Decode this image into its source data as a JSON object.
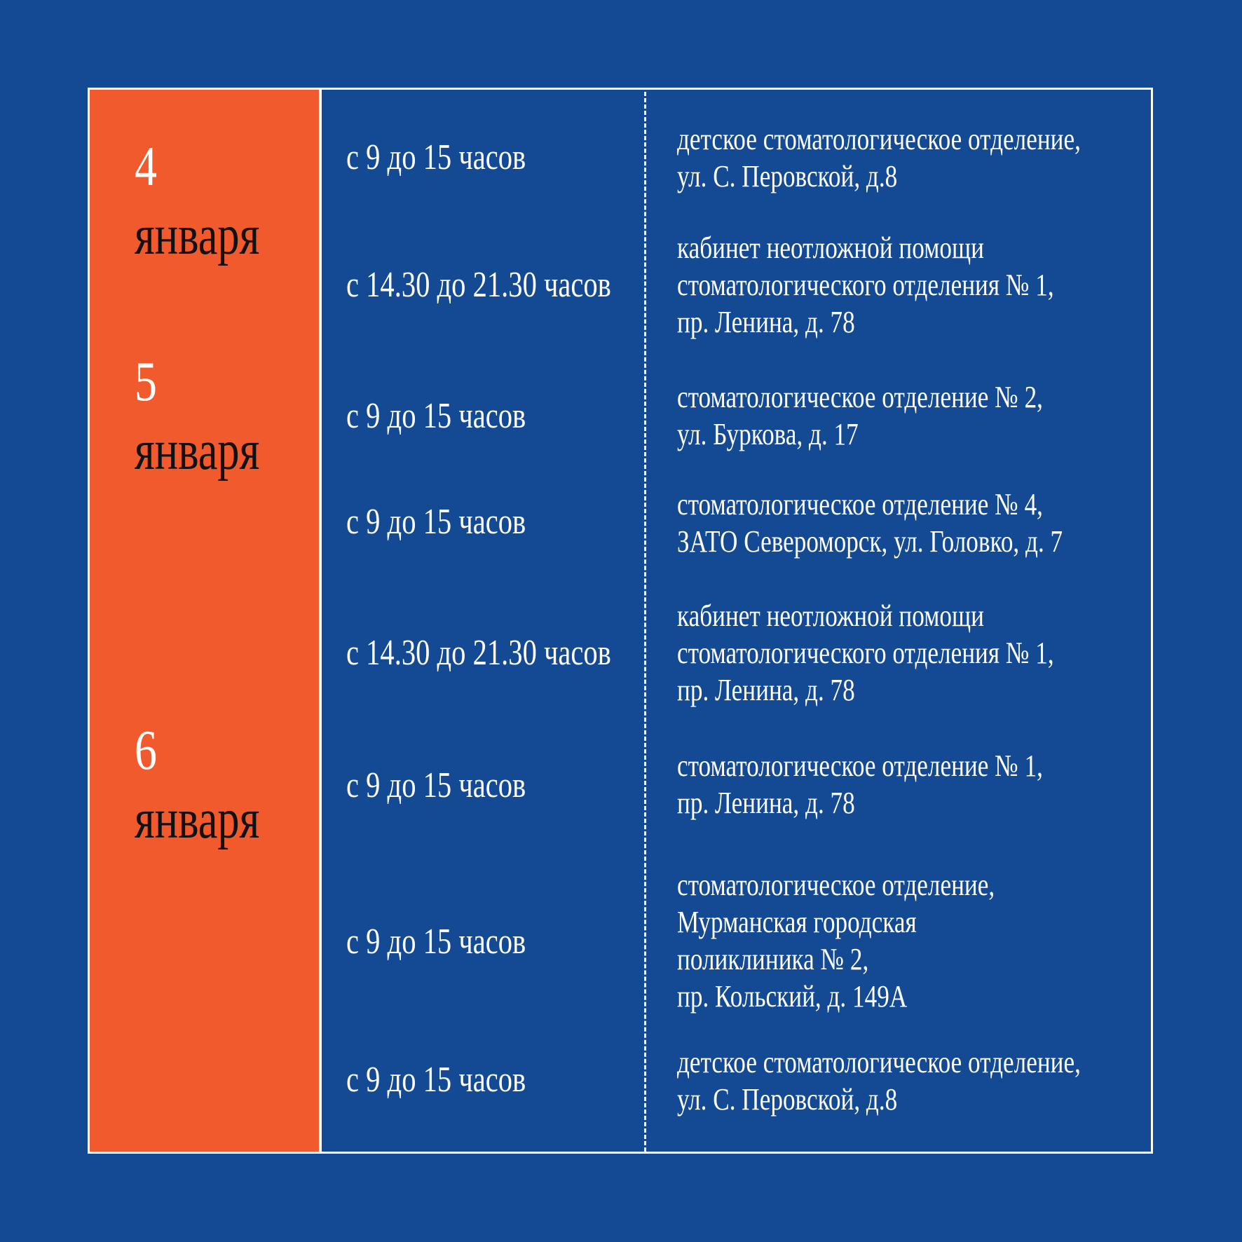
{
  "dates": [
    {
      "day": "4",
      "month": "января"
    },
    {
      "day": "5",
      "month": "января"
    },
    {
      "day": "6",
      "month": "января"
    }
  ],
  "rows": [
    {
      "time": "с 9 до 15 часов",
      "place": [
        "детское стоматологическое отделение,",
        "ул. С. Перовской, д.8"
      ]
    },
    {
      "time": "с 14.30 до 21.30 часов",
      "place": [
        "кабинет неотложной помощи",
        "стоматологического отделения № 1,",
        "пр. Ленина, д. 78"
      ]
    },
    {
      "time": "с 9 до 15 часов",
      "place": [
        "стоматологическое отделение № 2,",
        "ул. Буркова, д. 17"
      ]
    },
    {
      "time": "с 9 до 15 часов",
      "place": [
        "стоматологическое отделение № 4,",
        "ЗАТО Североморск, ул. Головко, д. 7"
      ]
    },
    {
      "time": "с 14.30 до 21.30 часов",
      "place": [
        "кабинет неотложной помощи",
        "стоматологического отделения № 1,",
        "пр. Ленина, д. 78"
      ]
    },
    {
      "time": "с 9 до 15 часов",
      "place": [
        "стоматологическое отделение № 1,",
        "пр. Ленина, д. 78"
      ]
    },
    {
      "time": "с 9 до 15 часов",
      "place": [
        "стоматологическое отделение,",
        "Мурманская городская",
        "поликлиника №  2,",
        "пр. Кольский, д. 149А"
      ]
    },
    {
      "time": "с 9 до 15 часов",
      "place": [
        "детское стоматологическое отделение,",
        "ул. С. Перовской, д.8"
      ]
    }
  ],
  "colors": {
    "background": "#134a93",
    "accent": "#f05a2c",
    "line": "#ffffff"
  }
}
